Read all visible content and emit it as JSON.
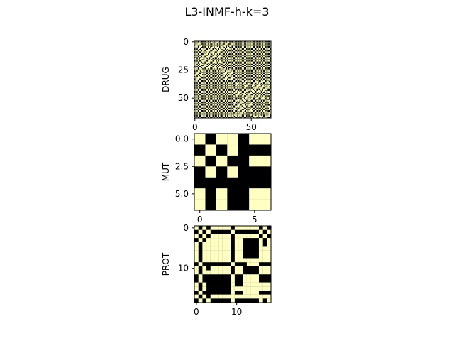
{
  "figure": {
    "title": "L3-INMF-h-k=3"
  },
  "colors": {
    "on": "#ffffc2",
    "off": "#000000"
  },
  "chart_data": [
    {
      "type": "heatmap",
      "ylabel": "DRUG",
      "n": 68,
      "xticks": [
        0,
        50
      ],
      "yticks": [
        0,
        25,
        50
      ],
      "labels_template": [
        1,
        0,
        1,
        0,
        1,
        1,
        0,
        0,
        1,
        0,
        1,
        1,
        0,
        1,
        0,
        0,
        1,
        0,
        1,
        1,
        0,
        1,
        0,
        1,
        1,
        0,
        0,
        1,
        0,
        1,
        0,
        0,
        1,
        0,
        1,
        1,
        0,
        0,
        1,
        0,
        1,
        0,
        1,
        1,
        0,
        0,
        1,
        0,
        1,
        0,
        1,
        1,
        0,
        0,
        1,
        0,
        1,
        0,
        0,
        1,
        0,
        1,
        1,
        0,
        1,
        0,
        0,
        1
      ],
      "pattern": "diagonal-biclusters"
    },
    {
      "type": "heatmap",
      "ylabel": "MUT",
      "n": 7,
      "xticks": [
        0,
        5
      ],
      "yticks": [
        0.0,
        2.5,
        5.0
      ],
      "ytick_labels": [
        "0.0",
        "2.5",
        "5.0"
      ],
      "matrix": [
        [
          1,
          0,
          1,
          1,
          0,
          1,
          1
        ],
        [
          0,
          1,
          0,
          1,
          0,
          0,
          0
        ],
        [
          1,
          0,
          1,
          0,
          0,
          1,
          1
        ],
        [
          0,
          1,
          0,
          1,
          0,
          0,
          0
        ],
        [
          0,
          0,
          0,
          0,
          0,
          0,
          0
        ],
        [
          1,
          0,
          1,
          0,
          0,
          1,
          1
        ],
        [
          1,
          0,
          1,
          0,
          0,
          1,
          1
        ]
      ]
    },
    {
      "type": "heatmap",
      "ylabel": "PROT",
      "n": 19,
      "xticks": [
        0,
        10
      ],
      "yticks": [
        0,
        10
      ],
      "matrix": [
        [
          1,
          0,
          1,
          0,
          1,
          1,
          1,
          1,
          1,
          0,
          1,
          1,
          1,
          1,
          1,
          1,
          0,
          1,
          0
        ],
        [
          0,
          1,
          0,
          1,
          0,
          0,
          0,
          0,
          0,
          1,
          0,
          0,
          0,
          0,
          0,
          0,
          1,
          0,
          1
        ],
        [
          1,
          0,
          1,
          0,
          1,
          1,
          1,
          1,
          1,
          0,
          1,
          1,
          1,
          1,
          1,
          1,
          0,
          1,
          0
        ],
        [
          0,
          1,
          0,
          1,
          1,
          1,
          1,
          1,
          1,
          0,
          1,
          1,
          0,
          0,
          0,
          0,
          1,
          0,
          1
        ],
        [
          1,
          0,
          1,
          1,
          1,
          1,
          1,
          1,
          1,
          0,
          1,
          1,
          0,
          0,
          0,
          0,
          1,
          0,
          1
        ],
        [
          1,
          0,
          1,
          1,
          1,
          1,
          1,
          1,
          1,
          0,
          1,
          1,
          0,
          0,
          0,
          0,
          1,
          1,
          1
        ],
        [
          1,
          0,
          1,
          1,
          1,
          1,
          1,
          1,
          1,
          0,
          1,
          1,
          0,
          0,
          0,
          0,
          1,
          1,
          1
        ],
        [
          1,
          0,
          1,
          1,
          1,
          1,
          1,
          1,
          1,
          0,
          1,
          1,
          0,
          0,
          0,
          0,
          1,
          1,
          1
        ],
        [
          1,
          0,
          1,
          1,
          1,
          1,
          1,
          1,
          1,
          0,
          1,
          1,
          1,
          1,
          1,
          1,
          1,
          1,
          1
        ],
        [
          0,
          1,
          0,
          0,
          0,
          0,
          0,
          0,
          0,
          1,
          0,
          0,
          0,
          1,
          1,
          1,
          0,
          0,
          0
        ],
        [
          1,
          0,
          1,
          0,
          1,
          1,
          1,
          1,
          1,
          0,
          1,
          1,
          0,
          0,
          0,
          0,
          1,
          1,
          1
        ],
        [
          1,
          0,
          1,
          1,
          1,
          1,
          1,
          1,
          1,
          0,
          1,
          1,
          0,
          0,
          0,
          0,
          1,
          1,
          1
        ],
        [
          0,
          1,
          0,
          0,
          0,
          0,
          0,
          0,
          0,
          1,
          0,
          0,
          1,
          1,
          1,
          1,
          0,
          0,
          0
        ],
        [
          0,
          1,
          0,
          0,
          0,
          0,
          0,
          0,
          0,
          1,
          0,
          0,
          1,
          1,
          1,
          1,
          0,
          0,
          0
        ],
        [
          1,
          0,
          1,
          0,
          0,
          0,
          0,
          0,
          0,
          1,
          0,
          0,
          1,
          1,
          1,
          1,
          1,
          1,
          1
        ],
        [
          1,
          0,
          1,
          0,
          0,
          0,
          0,
          0,
          0,
          1,
          1,
          1,
          1,
          1,
          1,
          1,
          1,
          1,
          1
        ],
        [
          0,
          1,
          0,
          0,
          0,
          0,
          0,
          0,
          0,
          1,
          0,
          0,
          1,
          1,
          1,
          1,
          0,
          0,
          0
        ],
        [
          1,
          0,
          1,
          0,
          1,
          1,
          1,
          1,
          1,
          1,
          1,
          1,
          1,
          1,
          1,
          1,
          1,
          1,
          1
        ],
        [
          0,
          1,
          0,
          1,
          0,
          0,
          0,
          0,
          0,
          1,
          0,
          0,
          0,
          0,
          0,
          0,
          1,
          0,
          1
        ]
      ]
    }
  ]
}
